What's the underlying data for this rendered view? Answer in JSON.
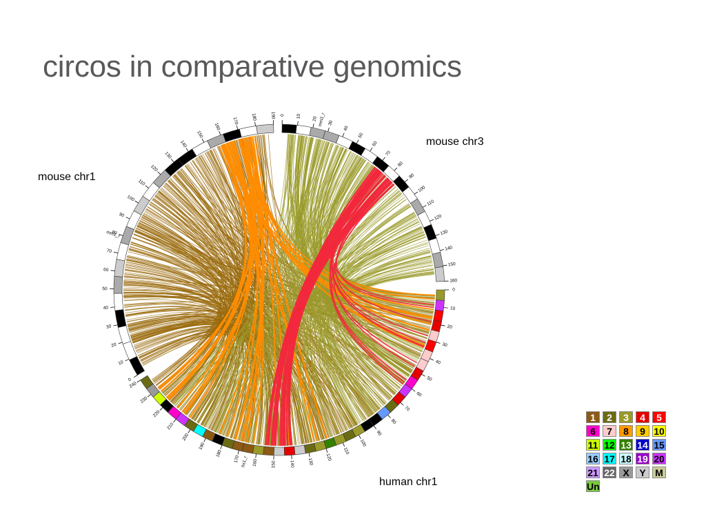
{
  "slide": {
    "title": "circos in comparative genomics"
  },
  "labels": {
    "mouse_chr3": "mouse chr3",
    "mouse_chr1": "mouse chr1",
    "human_chr1": "human chr1"
  },
  "ideograms": {
    "mouse_chr3": {
      "name": "mm3_r",
      "ticks": [
        "0",
        "10",
        "20",
        "30",
        "40",
        "50",
        "60",
        "70",
        "80",
        "90",
        "100",
        "110",
        "120",
        "130",
        "140",
        "150",
        "160"
      ]
    },
    "mouse_chr1": {
      "name": "mm1_r",
      "ticks": [
        "0",
        "10",
        "20",
        "30",
        "40",
        "50",
        "60",
        "70",
        "80",
        "90",
        "100",
        "110",
        "120",
        "130",
        "140",
        "150",
        "160",
        "170",
        "180",
        "190"
      ]
    },
    "human_chr1": {
      "name": "hs1_r",
      "ticks": [
        "0",
        "10",
        "20",
        "30",
        "40",
        "50",
        "60",
        "70",
        "80",
        "90",
        "100",
        "110",
        "120",
        "130",
        "140",
        "150",
        "160",
        "170",
        "180",
        "190",
        "200",
        "210",
        "220",
        "230",
        "240"
      ]
    }
  },
  "link_colors": {
    "chr1_links": "#9a6a0c",
    "chr3_links": "#9a9a2a",
    "bundle_orange": "#ff8c00",
    "bundle_red": "#f2283c"
  },
  "legend": [
    {
      "label": "1",
      "bg": "#8b5a14",
      "fg": "#ffffff"
    },
    {
      "label": "2",
      "bg": "#6b6b14",
      "fg": "#ffffff"
    },
    {
      "label": "3",
      "bg": "#9a9a2a",
      "fg": "#ffffff"
    },
    {
      "label": "4",
      "bg": "#e60000",
      "fg": "#ffffff"
    },
    {
      "label": "5",
      "bg": "#ff0000",
      "fg": "#ffffff"
    },
    {
      "label": "6",
      "bg": "#ff00cc",
      "fg": "#000000"
    },
    {
      "label": "7",
      "bg": "#ffcccc",
      "fg": "#000000"
    },
    {
      "label": "8",
      "bg": "#ff9900",
      "fg": "#000000"
    },
    {
      "label": "9",
      "bg": "#ffcc00",
      "fg": "#000000"
    },
    {
      "label": "10",
      "bg": "#ffff00",
      "fg": "#000000"
    },
    {
      "label": "11",
      "bg": "#ccff00",
      "fg": "#000000"
    },
    {
      "label": "12",
      "bg": "#00ff00",
      "fg": "#000000"
    },
    {
      "label": "13",
      "bg": "#358000",
      "fg": "#ffffff"
    },
    {
      "label": "14",
      "bg": "#0000cc",
      "fg": "#ffffff"
    },
    {
      "label": "15",
      "bg": "#6699ff",
      "fg": "#000000"
    },
    {
      "label": "16",
      "bg": "#99ccff",
      "fg": "#000000"
    },
    {
      "label": "17",
      "bg": "#00ffff",
      "fg": "#000000"
    },
    {
      "label": "18",
      "bg": "#ccffff",
      "fg": "#000000"
    },
    {
      "label": "19",
      "bg": "#9900cc",
      "fg": "#ffffff"
    },
    {
      "label": "20",
      "bg": "#cc33ff",
      "fg": "#000000"
    },
    {
      "label": "21",
      "bg": "#cc99ff",
      "fg": "#000000"
    },
    {
      "label": "22",
      "bg": "#666666",
      "fg": "#ffffff"
    },
    {
      "label": "X",
      "bg": "#999999",
      "fg": "#000000"
    },
    {
      "label": "Y",
      "bg": "#cccccc",
      "fg": "#000000"
    },
    {
      "label": "M",
      "bg": "#cccc99",
      "fg": "#000000"
    },
    {
      "label": "Un",
      "bg": "#79cc3d",
      "fg": "#000000"
    }
  ]
}
